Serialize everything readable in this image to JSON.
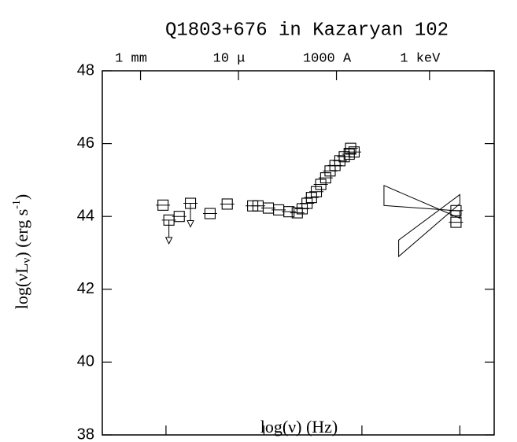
{
  "chart_data": {
    "type": "scatter",
    "title": "Q1803+676 in Kazaryan 102",
    "xlabel": "log(ν) (Hz)",
    "ylabel_parts": [
      "log(νL",
      "ν",
      ") (erg s",
      "-1",
      ")"
    ],
    "xlim": [
      10.7,
      18.7
    ],
    "ylim": [
      38,
      48
    ],
    "xticks": [
      12,
      14,
      16,
      18
    ],
    "yticks": [
      38,
      40,
      42,
      44,
      46,
      48
    ],
    "x2ticks": [
      {
        "value": 11.48,
        "label": "1 mm"
      },
      {
        "value": 13.48,
        "label": "10 μ"
      },
      {
        "value": 15.48,
        "label": "1000 A"
      },
      {
        "value": 17.38,
        "label": "1 keV"
      }
    ],
    "marker": "square",
    "color": "#000000",
    "series": [
      {
        "x": [
          11.94,
          12.06,
          12.27,
          12.5,
          12.9,
          13.25,
          13.77,
          13.88,
          14.09,
          14.3,
          14.51,
          14.68,
          14.78,
          14.88,
          14.97,
          15.07,
          15.16,
          15.26,
          15.35,
          15.45,
          15.55,
          15.64,
          15.74,
          15.84,
          15.77,
          17.92,
          17.92
        ],
        "values": [
          44.31,
          43.9,
          44.0,
          44.36,
          44.08,
          44.34,
          44.29,
          44.29,
          44.23,
          44.18,
          44.13,
          44.1,
          44.21,
          44.36,
          44.52,
          44.68,
          44.88,
          45.06,
          45.25,
          45.4,
          45.53,
          45.64,
          45.71,
          45.77,
          45.87,
          44.16,
          43.84
        ],
        "upper_limit": [
          false,
          true,
          false,
          true,
          false,
          false,
          false,
          false,
          false,
          false,
          false,
          false,
          false,
          false,
          false,
          false,
          false,
          false,
          false,
          false,
          false,
          false,
          false,
          false,
          false,
          false,
          false
        ]
      }
    ],
    "bowties": [
      {
        "x": [
          16.45,
          18.0,
          18.0,
          16.45
        ],
        "y": [
          44.85,
          43.95,
          44.15,
          44.3
        ]
      },
      {
        "x": [
          16.75,
          18.0,
          18.0,
          16.75
        ],
        "y": [
          43.35,
          44.6,
          44.35,
          42.9
        ]
      }
    ]
  }
}
